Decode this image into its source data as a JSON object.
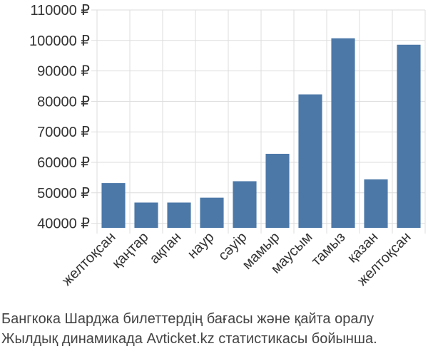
{
  "chart_data": {
    "type": "bar",
    "categories": [
      "желтоқсан",
      "қаңтар",
      "ақпан",
      "наур",
      "сәуір",
      "мамыр",
      "маусым",
      "тамыз",
      "қазан",
      "желтоқсан"
    ],
    "values": [
      53200,
      46800,
      46800,
      48400,
      53800,
      62800,
      82300,
      100700,
      54400,
      98600
    ],
    "y_ticks": [
      40000,
      50000,
      60000,
      70000,
      80000,
      90000,
      100000,
      110000
    ],
    "y_tick_labels": [
      "40000 ₽",
      "50000 ₽",
      "60000 ₽",
      "70000 ₽",
      "80000 ₽",
      "90000 ₽",
      "100000 ₽",
      "110000 ₽"
    ],
    "ylim": [
      38500,
      110000
    ],
    "grid": true,
    "bar_color": "#4c78a8",
    "title": "",
    "xlabel": "",
    "ylabel": ""
  },
  "caption": {
    "line1": "Бангкока Шарджа билеттердің бағасы және қайта оралу",
    "line2": "Жылдық динамикада Avticket.kz статистикасы бойынша."
  }
}
